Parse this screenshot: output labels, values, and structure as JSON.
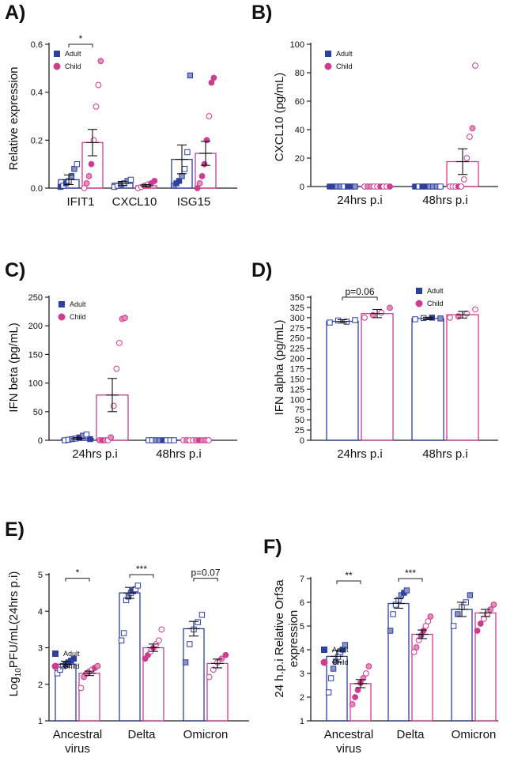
{
  "colors": {
    "adult": "#2e3f9c",
    "adult_light": "#8a93c8",
    "child": "#cc3d8f",
    "child_light": "#e48dbd"
  },
  "chart_data": [
    {
      "id": "A",
      "panel_label": "A)",
      "type": "bar",
      "ylabel": "Relative expression",
      "ylim": [
        0,
        0.6
      ],
      "yticks": [
        0.0,
        0.2,
        0.4,
        0.6
      ],
      "ytick_labels": [
        "0.0",
        "0.2",
        "0.4",
        "0.6"
      ],
      "categories": [
        "IFIT1",
        "CXCL10",
        "ISG15"
      ],
      "legend": [
        "Adult",
        "Child"
      ],
      "series": [
        {
          "name": "Adult",
          "values": [
            0.035,
            0.02,
            0.12
          ],
          "errors": [
            0.02,
            0.008,
            0.06
          ],
          "points": [
            [
              0.005,
              0.01,
              0.02,
              0.03,
              0.05,
              0.08,
              0.1
            ],
            [
              0.005,
              0.01,
              0.015,
              0.02,
              0.03,
              0.035
            ],
            [
              0.01,
              0.02,
              0.03,
              0.05,
              0.08,
              0.15,
              0.47
            ]
          ]
        },
        {
          "name": "Child",
          "values": [
            0.19,
            0.01,
            0.145
          ],
          "errors": [
            0.055,
            0.005,
            0.05
          ],
          "points": [
            [
              0.0,
              0.02,
              0.05,
              0.1,
              0.2,
              0.34,
              0.43,
              0.53
            ],
            [
              0.0,
              0.005,
              0.01,
              0.015,
              0.02,
              0.03
            ],
            [
              0.0,
              0.02,
              0.05,
              0.1,
              0.2,
              0.3,
              0.44,
              0.46
            ]
          ]
        }
      ],
      "significance": [
        {
          "category": 0,
          "text": "*",
          "y": 0.62
        }
      ]
    },
    {
      "id": "B",
      "panel_label": "B)",
      "type": "bar",
      "ylabel": "CXCL10 (pg/mL)",
      "ylim": [
        0,
        100
      ],
      "yticks": [
        0,
        20,
        40,
        60,
        80,
        100
      ],
      "ytick_labels": [
        "0",
        "20",
        "40",
        "60",
        "80",
        "100"
      ],
      "categories": [
        "24hrs p.i",
        "48hrs p.i"
      ],
      "legend": [
        "Adult",
        "Child"
      ],
      "series": [
        {
          "name": "Adult",
          "values": [
            0.3,
            0.3
          ],
          "errors": [
            0,
            0
          ],
          "points": [
            [
              0,
              0,
              0,
              0,
              0,
              0,
              0,
              0
            ],
            [
              0,
              0,
              0,
              0,
              0,
              0,
              0,
              0
            ]
          ]
        },
        {
          "name": "Child",
          "values": [
            0.3,
            17.5
          ],
          "errors": [
            0,
            9
          ],
          "points": [
            [
              0,
              0,
              0,
              0,
              0,
              0,
              0,
              0,
              0
            ],
            [
              0,
              0,
              0,
              0,
              0,
              5,
              20,
              35,
              41,
              85
            ]
          ]
        }
      ],
      "significance": []
    },
    {
      "id": "C",
      "panel_label": "C)",
      "type": "bar",
      "ylabel": "IFN beta (pg/mL)",
      "ylim": [
        0,
        250
      ],
      "yticks": [
        0,
        50,
        100,
        150,
        200,
        250
      ],
      "ytick_labels": [
        "0",
        "50",
        "100",
        "150",
        "200",
        "250"
      ],
      "categories": [
        "24hrs p.i",
        "48hrs p.i"
      ],
      "legend": [
        "Adult",
        "Child"
      ],
      "series": [
        {
          "name": "Adult",
          "values": [
            3,
            0.5
          ],
          "errors": [
            2,
            0
          ],
          "points": [
            [
              0,
              1,
              2,
              3,
              5,
              8,
              10,
              2
            ],
            [
              0,
              0,
              0,
              0,
              0,
              0,
              0,
              0
            ]
          ]
        },
        {
          "name": "Child",
          "values": [
            79,
            0.5
          ],
          "errors": [
            29,
            0
          ],
          "points": [
            [
              0,
              0,
              0,
              0,
              5,
              60,
              125,
              170,
              212,
              214
            ],
            [
              0,
              0,
              0,
              0,
              0,
              0,
              0,
              0,
              0
            ]
          ]
        }
      ],
      "significance": []
    },
    {
      "id": "D",
      "panel_label": "D)",
      "type": "bar",
      "ylabel": "IFN alpha (pg/mL)",
      "ylim": [
        0,
        350
      ],
      "yticks": [
        0,
        25,
        50,
        75,
        100,
        125,
        150,
        175,
        200,
        225,
        250,
        275,
        300,
        325,
        350
      ],
      "ytick_labels": [
        "0",
        "25",
        "50",
        "75",
        "100",
        "125",
        "150",
        "175",
        "200",
        "225",
        "250",
        "275",
        "300",
        "325",
        "350"
      ],
      "categories": [
        "24hrs p.i",
        "48hrs p.i"
      ],
      "legend": [
        "Adult",
        "Child"
      ],
      "series": [
        {
          "name": "Adult",
          "values": [
            291,
            298
          ],
          "errors": [
            4,
            3
          ],
          "points": [
            [
              288,
              293,
              290,
              294
            ],
            [
              296,
              299,
              300,
              298
            ]
          ]
        },
        {
          "name": "Child",
          "values": [
            310,
            307
          ],
          "errors": [
            10,
            8
          ],
          "points": [
            [
              300,
              306,
              312,
              324
            ],
            [
              300,
              303,
              310,
              320
            ]
          ]
        }
      ],
      "significance": [
        {
          "category": 0,
          "text": "p=0.06",
          "y": 352
        }
      ]
    },
    {
      "id": "E",
      "panel_label": "E)",
      "type": "bar",
      "ylabel_prefix": "Log",
      "ylabel_sub": "10",
      "ylabel_suffix": "PFU/mL(24hrs p.i)",
      "ylim": [
        1,
        5
      ],
      "yticks": [
        1,
        2,
        3,
        4,
        5
      ],
      "ytick_labels": [
        "1",
        "2",
        "3",
        "4",
        "5"
      ],
      "categories": [
        "Ancestral virus",
        "Delta",
        "Omicron"
      ],
      "legend": [
        "Adult",
        "Child"
      ],
      "series": [
        {
          "name": "Adult",
          "values": [
            2.55,
            4.5,
            3.52
          ],
          "errors": [
            0.08,
            0.15,
            0.2
          ],
          "points": [
            [
              2.3,
              2.4,
              2.5,
              2.55,
              2.6,
              2.65,
              2.7
            ],
            [
              3.2,
              3.4,
              4.3,
              4.4,
              4.5,
              4.55,
              4.6,
              4.7
            ],
            [
              2.6,
              3.1,
              3.5,
              3.7,
              3.9
            ]
          ]
        },
        {
          "name": "Child",
          "values": [
            2.3,
            3.0,
            2.57
          ],
          "errors": [
            0.06,
            0.1,
            0.12
          ],
          "points": [
            [
              1.9,
              2.2,
              2.3,
              2.35,
              2.4,
              2.45,
              2.5
            ],
            [
              2.7,
              2.8,
              2.9,
              3.0,
              3.1,
              3.2,
              3.5
            ],
            [
              2.2,
              2.4,
              2.6,
              2.7,
              2.8
            ]
          ]
        }
      ],
      "significance": [
        {
          "category": 0,
          "text": "*",
          "y": 4.9
        },
        {
          "category": 1,
          "text": "***",
          "y": 5.05
        },
        {
          "category": 2,
          "text": "p=0.07",
          "y": 4.9
        }
      ]
    },
    {
      "id": "F",
      "panel_label": "F)",
      "type": "bar",
      "ylabel_line1": "24 h.p.i Relative Orf3a",
      "ylabel_line2": "expression",
      "ylim": [
        1,
        7
      ],
      "yticks": [
        1,
        2,
        3,
        4,
        5,
        6,
        7
      ],
      "ytick_labels": [
        "1",
        "2",
        "3",
        "4",
        "5",
        "6",
        "7"
      ],
      "categories": [
        "Ancestral virus",
        "Delta",
        "Omicron"
      ],
      "legend": [
        "Adult",
        "Child"
      ],
      "series": [
        {
          "name": "Adult",
          "values": [
            3.72,
            5.95,
            5.7
          ],
          "errors": [
            0.25,
            0.2,
            0.3
          ],
          "points": [
            [
              2.2,
              2.8,
              3.2,
              3.5,
              3.7,
              3.9,
              4.0,
              4.2
            ],
            [
              4.8,
              5.5,
              5.9,
              6.1,
              6.3,
              6.4,
              6.5
            ],
            [
              5.0,
              5.5,
              5.8,
              6.0,
              6.3
            ]
          ]
        },
        {
          "name": "Child",
          "values": [
            2.57,
            4.65,
            5.55
          ],
          "errors": [
            0.17,
            0.18,
            0.15
          ],
          "points": [
            [
              1.7,
              2.0,
              2.3,
              2.6,
              2.8,
              3.0,
              3.3
            ],
            [
              3.9,
              4.1,
              4.4,
              4.6,
              4.8,
              5.0,
              5.2,
              5.4
            ],
            [
              4.8,
              5.1,
              5.3,
              5.5,
              5.7,
              5.9
            ]
          ]
        }
      ],
      "significance": [
        {
          "category": 0,
          "text": "**",
          "y": 6.9
        },
        {
          "category": 1,
          "text": "***",
          "y": 7.25
        }
      ]
    }
  ]
}
